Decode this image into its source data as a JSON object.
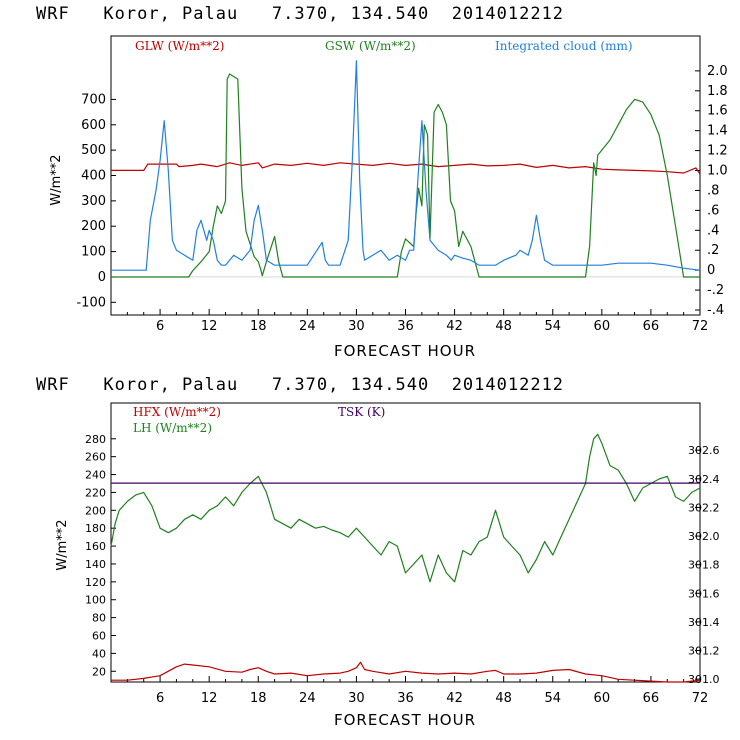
{
  "chart_data": [
    {
      "type": "line",
      "title": "WRF   Koror, Palau   7.370, 134.540  2014012212",
      "xlabel": "FORECAST HOUR",
      "ylabel": "W/m**2",
      "xlim": [
        0,
        72
      ],
      "ylim": [
        -150,
        950
      ],
      "y2lim": [
        -0.45,
        2.35
      ],
      "xticks": [
        6,
        12,
        18,
        24,
        30,
        36,
        42,
        48,
        54,
        60,
        66,
        72
      ],
      "yticks": [
        -100,
        0,
        100,
        200,
        300,
        400,
        500,
        600,
        700
      ],
      "y2ticks": [
        -0.4,
        -0.2,
        0,
        0.2,
        0.4,
        0.6,
        0.8,
        1.0,
        1.2,
        1.4,
        1.6,
        1.8,
        2.0
      ],
      "y2ticklabels": [
        "-.4",
        "-.2",
        "0",
        ".2",
        ".4",
        ".6",
        ".8",
        "1.0",
        "1.2",
        "1.4",
        "1.6",
        "1.8",
        "2.0"
      ],
      "colors": {
        "GLW": "#c00000",
        "GSW": "#208020",
        "cloud": "#2080e0"
      },
      "series": [
        {
          "name": "GLW (W/m**2)",
          "axis": "left",
          "color": "#c00000",
          "x": [
            0,
            4,
            4.5,
            8,
            8.3,
            10,
            11,
            12,
            13,
            14,
            14.5,
            16,
            18,
            18.5,
            20,
            22,
            24,
            26,
            28,
            30,
            32,
            34,
            36,
            38,
            40,
            42,
            44,
            46,
            48,
            50,
            52,
            54,
            56,
            58,
            60,
            62,
            64,
            66,
            68,
            70,
            71.5,
            72
          ],
          "y": [
            420,
            420,
            445,
            445,
            435,
            440,
            445,
            440,
            435,
            445,
            450,
            440,
            450,
            430,
            445,
            440,
            448,
            440,
            450,
            445,
            440,
            448,
            440,
            445,
            435,
            440,
            445,
            438,
            440,
            445,
            432,
            440,
            430,
            435,
            425,
            422,
            420,
            418,
            415,
            410,
            430,
            405
          ]
        },
        {
          "name": "GSW (W/m**2)",
          "axis": "left",
          "color": "#208020",
          "x": [
            0,
            9.5,
            10,
            11,
            12,
            12.5,
            13,
            13.5,
            14,
            14.2,
            14.5,
            15.5,
            16,
            16.5,
            17,
            17.5,
            18,
            18.3,
            18.5,
            19,
            20,
            20.5,
            21,
            35,
            35.5,
            36,
            37,
            37.3,
            37.6,
            38,
            38.3,
            38.7,
            39,
            39.5,
            40,
            40.5,
            41,
            41.5,
            42,
            42.5,
            43,
            44,
            45,
            58,
            58.5,
            59,
            59.3,
            59.5,
            60,
            61,
            62,
            63,
            64,
            65,
            66,
            67,
            68,
            69,
            70,
            72
          ],
          "y": [
            0,
            0,
            25,
            60,
            100,
            200,
            280,
            250,
            300,
            780,
            800,
            780,
            350,
            180,
            130,
            80,
            60,
            30,
            5,
            60,
            160,
            60,
            0,
            0,
            100,
            150,
            120,
            250,
            350,
            280,
            600,
            560,
            150,
            650,
            680,
            650,
            600,
            300,
            260,
            120,
            180,
            120,
            0,
            0,
            120,
            450,
            400,
            480,
            500,
            540,
            600,
            660,
            700,
            690,
            640,
            560,
            400,
            200,
            0,
            0
          ]
        },
        {
          "name": "Integrated cloud (mm)",
          "axis": "right",
          "color": "#2080e0",
          "x": [
            0,
            4.3,
            4.8,
            5.5,
            6,
            6.5,
            7,
            7.5,
            8,
            9,
            10,
            10.5,
            11,
            11.7,
            12,
            12.5,
            13,
            13.5,
            14,
            15,
            16,
            17,
            17.5,
            18,
            18.5,
            19,
            20,
            22,
            24,
            25.8,
            26.2,
            26.6,
            28,
            29,
            29.5,
            30,
            30.4,
            30.8,
            31,
            33,
            34,
            35,
            36,
            36.5,
            37,
            37.5,
            38,
            38.5,
            39,
            40,
            41,
            41.6,
            42,
            43,
            44,
            45,
            46,
            47,
            48,
            49.5,
            50,
            51,
            51.5,
            52,
            52.5,
            53,
            54,
            56,
            58,
            60,
            62,
            64,
            66,
            68,
            70,
            72
          ],
          "y": [
            0,
            0,
            0.5,
            0.8,
            1.1,
            1.5,
            1.0,
            0.3,
            0.2,
            0.15,
            0.1,
            0.4,
            0.5,
            0.3,
            0.4,
            0.3,
            0.1,
            0.05,
            0.05,
            0.15,
            0.1,
            0.2,
            0.5,
            0.65,
            0.4,
            0.1,
            0.05,
            0.05,
            0.05,
            0.28,
            0.1,
            0.05,
            0.05,
            0.3,
            1.1,
            2.1,
            0.9,
            0.2,
            0.1,
            0.2,
            0.1,
            0.15,
            0.1,
            0.2,
            0.2,
            0.9,
            1.5,
            0.8,
            0.3,
            0.2,
            0.15,
            0.1,
            0.15,
            0.12,
            0.1,
            0.05,
            0.05,
            0.05,
            0.1,
            0.15,
            0.2,
            0.15,
            0.3,
            0.55,
            0.3,
            0.1,
            0.05,
            0.05,
            0.05,
            0.05,
            0.07,
            0.07,
            0.07,
            0.05,
            0.02,
            0
          ]
        }
      ]
    },
    {
      "type": "line",
      "title": "WRF   Koror, Palau   7.370, 134.540  2014012212",
      "xlabel": "FORECAST HOUR",
      "ylabel": "W/m**2",
      "xlim": [
        0,
        72
      ],
      "ylim": [
        8,
        320
      ],
      "y2lim": [
        300.98,
        302.93
      ],
      "xticks": [
        6,
        12,
        18,
        24,
        30,
        36,
        42,
        48,
        54,
        60,
        66,
        72
      ],
      "yticks": [
        20,
        40,
        60,
        80,
        100,
        120,
        140,
        160,
        180,
        200,
        220,
        240,
        260,
        280
      ],
      "y2ticks": [
        301.0,
        301.2,
        301.4,
        301.6,
        301.8,
        302.0,
        302.2,
        302.4,
        302.6
      ],
      "y2ticklabels": [
        "301.0",
        "301.2",
        "301.4",
        "301.6",
        "301.8",
        "302.0",
        "302.2",
        "302.4",
        "302.6"
      ],
      "colors": {
        "HFX": "#c00000",
        "LH": "#208020",
        "TSK": "#400060"
      },
      "series": [
        {
          "name": "HFX (W/m**2)",
          "axis": "left",
          "color": "#c00000",
          "x": [
            0,
            2,
            4,
            6,
            8,
            9,
            10,
            12,
            14,
            16,
            17,
            18,
            19,
            20,
            22,
            24,
            26,
            28,
            29,
            30,
            30.5,
            31,
            32,
            34,
            36,
            38,
            40,
            42,
            44,
            46,
            47,
            48,
            50,
            52,
            54,
            56,
            58,
            60,
            62,
            64,
            66,
            68,
            70,
            72
          ],
          "y": [
            10,
            10,
            12,
            15,
            25,
            28,
            27,
            25,
            20,
            19,
            22,
            24,
            20,
            17,
            18,
            15,
            17,
            18,
            20,
            24,
            30,
            22,
            20,
            17,
            20,
            18,
            17,
            18,
            17,
            20,
            21,
            17,
            17,
            18,
            21,
            22,
            17,
            15,
            11,
            10,
            9,
            8,
            8,
            10
          ]
        },
        {
          "name": "LH (W/m**2)",
          "axis": "left",
          "color": "#208020",
          "x": [
            0,
            0.5,
            1,
            2,
            3,
            4,
            5,
            6,
            7,
            8,
            9,
            10,
            11,
            12,
            13,
            14,
            15,
            16,
            17,
            18,
            19,
            20,
            21,
            22,
            23,
            24,
            25,
            26,
            27,
            28,
            29,
            30,
            31,
            32,
            33,
            34,
            35,
            36,
            37,
            38,
            39,
            40,
            41,
            42,
            43,
            44,
            45,
            46,
            47,
            48,
            49,
            50,
            51,
            52,
            53,
            54,
            55,
            56,
            57,
            58,
            58.5,
            59,
            59.5,
            60,
            61,
            62,
            63,
            64,
            65,
            66,
            67,
            68,
            69,
            70,
            71,
            72
          ],
          "y": [
            160,
            185,
            200,
            210,
            217,
            220,
            205,
            180,
            175,
            180,
            190,
            195,
            190,
            200,
            205,
            215,
            205,
            220,
            230,
            238,
            220,
            190,
            185,
            180,
            190,
            185,
            180,
            182,
            178,
            175,
            170,
            180,
            170,
            160,
            150,
            165,
            160,
            130,
            140,
            150,
            120,
            150,
            130,
            120,
            155,
            150,
            165,
            170,
            200,
            170,
            160,
            150,
            130,
            145,
            165,
            150,
            170,
            190,
            210,
            230,
            260,
            280,
            285,
            275,
            250,
            245,
            230,
            210,
            225,
            230,
            235,
            238,
            215,
            210,
            220,
            225
          ]
        },
        {
          "name": "TSK (K)",
          "axis": "right",
          "color": "#400060",
          "x": [
            0,
            72
          ],
          "y": [
            302.37,
            302.37
          ]
        }
      ]
    }
  ]
}
